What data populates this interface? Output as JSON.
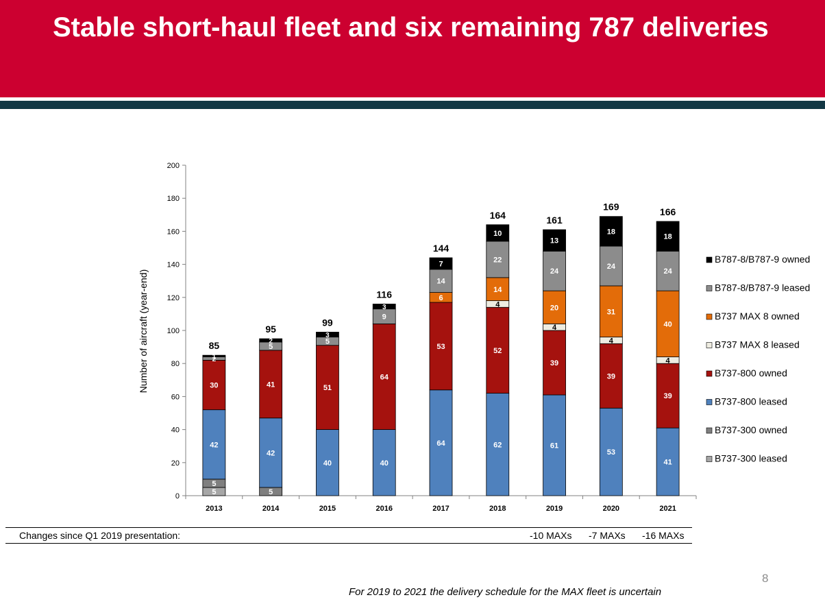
{
  "title": "Stable short-haul fleet and six remaining 787 deliveries",
  "changes": {
    "label": "Changes since Q1 2019 presentation:",
    "values": [
      "-10 MAXs",
      "-7 MAXs",
      "-16 MAXs"
    ]
  },
  "page_number": "8",
  "footnote": "For 2019 to 2021 the delivery schedule for the MAX fleet is uncertain",
  "colors": {
    "header": "#cc0030",
    "band": "#123744",
    "b737_300_leased": "#a6a6a6",
    "b737_300_owned": "#7f7f7f",
    "b737_800_leased": "#4f81bd",
    "b737_800_owned": "#a5120e",
    "max8_leased": "#eeece1",
    "max8_owned": "#e36c09",
    "b787_leased": "#8c8c8c",
    "b787_owned": "#000000"
  },
  "chart_data": {
    "type": "bar",
    "stacked": true,
    "categories": [
      "2013",
      "2014",
      "2015",
      "2016",
      "2017",
      "2018",
      "2019",
      "2020",
      "2021"
    ],
    "ylabel": "Number of aircraft (year-end)",
    "ylim": [
      0,
      200
    ],
    "yticks": [
      0,
      20,
      40,
      60,
      80,
      100,
      120,
      140,
      160,
      180,
      200
    ],
    "legend_position": "right",
    "series": [
      {
        "name": "B737-300 leased",
        "key": "b737_300_leased",
        "values": [
          5,
          0,
          0,
          0,
          0,
          0,
          0,
          0,
          0
        ],
        "labels": [
          "5",
          "",
          "",
          "",
          "",
          "",
          "",
          "",
          ""
        ],
        "label_color": "#ffffff"
      },
      {
        "name": "B737-300 owned",
        "key": "b737_300_owned",
        "values": [
          5,
          5,
          0,
          0,
          0,
          0,
          0,
          0,
          0
        ],
        "labels": [
          "5",
          "5",
          "",
          "",
          "",
          "",
          "",
          "",
          ""
        ],
        "label_color": "#ffffff"
      },
      {
        "name": "B737-800 leased",
        "key": "b737_800_leased",
        "values": [
          42,
          42,
          40,
          40,
          64,
          62,
          61,
          53,
          41
        ],
        "labels": [
          "42",
          "42",
          "40",
          "40",
          "64",
          "62",
          "61",
          "53",
          "41"
        ],
        "label_color": "#ffffff"
      },
      {
        "name": "B737-800 owned",
        "key": "b737_800_owned",
        "values": [
          30,
          41,
          51,
          64,
          53,
          52,
          39,
          39,
          39
        ],
        "labels": [
          "30",
          "41",
          "51",
          "64",
          "53",
          "52",
          "39",
          "39",
          "39"
        ],
        "label_color": "#ffffff"
      },
      {
        "name": "B737 MAX 8 leased",
        "key": "max8_leased",
        "values": [
          0,
          0,
          0,
          0,
          0,
          4,
          4,
          4,
          4
        ],
        "labels": [
          "",
          "",
          "",
          "",
          "",
          "4",
          "4",
          "4",
          "4"
        ],
        "label_color": "#000000"
      },
      {
        "name": "B737 MAX 8 owned",
        "key": "max8_owned",
        "values": [
          0,
          0,
          0,
          0,
          6,
          14,
          20,
          31,
          40
        ],
        "labels": [
          "",
          "",
          "",
          "",
          "6",
          "14",
          "20",
          "31",
          "40"
        ],
        "label_color": "#ffffff"
      },
      {
        "name": "B787-8/B787-9 leased",
        "key": "b787_leased",
        "values": [
          2,
          5,
          5,
          9,
          14,
          22,
          24,
          24,
          24
        ],
        "labels": [
          "2",
          "5",
          "5",
          "9",
          "14",
          "22",
          "24",
          "24",
          "24"
        ],
        "label_color": "#ffffff"
      },
      {
        "name": "B787-8/B787-9 owned",
        "key": "b787_owned",
        "values": [
          1,
          2,
          3,
          3,
          7,
          10,
          13,
          18,
          18
        ],
        "labels": [
          "1",
          "2",
          "3",
          "3",
          "7",
          "10",
          "13",
          "18",
          "18"
        ],
        "label_color": "#ffffff"
      }
    ],
    "legend_order": [
      "B787-8/B787-9 owned",
      "B787-8/B787-9 leased",
      "B737 MAX 8 owned",
      "B737 MAX 8 leased",
      "B737-800 owned",
      "B737-800 leased",
      "B737-300 owned",
      "B737-300 leased"
    ],
    "totals": [
      85,
      95,
      99,
      116,
      144,
      164,
      161,
      169,
      166
    ]
  }
}
